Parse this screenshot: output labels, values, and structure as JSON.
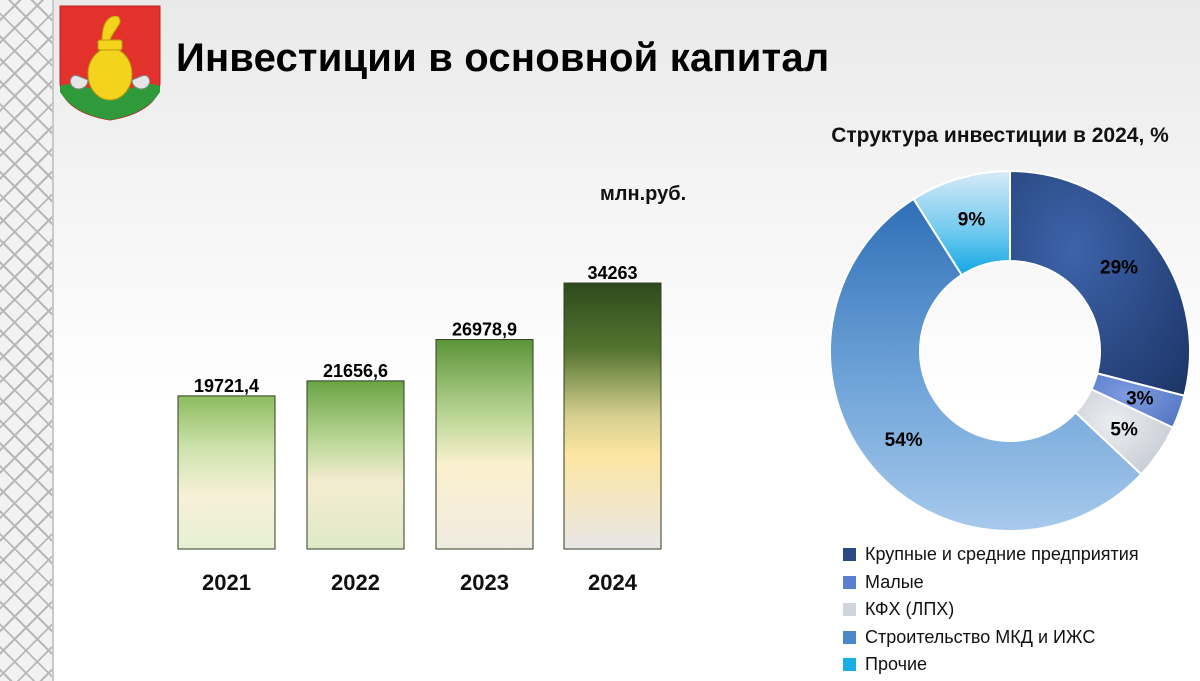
{
  "header": {
    "title": "Инвестиции в основной капитал"
  },
  "bar_block": {
    "units": "млн.руб."
  },
  "pie_block": {
    "title": "Структура инвестиции в 2024, %"
  },
  "chart_data": [
    {
      "type": "bar",
      "categories": [
        "2021",
        "2022",
        "2023",
        "2024"
      ],
      "values": [
        19721.4,
        21656.6,
        26978.9,
        34263
      ],
      "value_labels": [
        "19721,4",
        "21656,6",
        "26978,9",
        "34263"
      ],
      "title": "",
      "ylabel": "млн.руб.",
      "ylim": [
        0,
        34263
      ],
      "grid": false
    },
    {
      "type": "pie",
      "donut": true,
      "title": "Структура инвестиции в 2024, %",
      "labels": [
        "Крупные и средние предприятия",
        "Малые",
        "КФХ (ЛПХ)",
        "Строительство МКД и ИЖС",
        "Прочие"
      ],
      "values": [
        29,
        3,
        5,
        54,
        9
      ],
      "value_labels": [
        "29%",
        "3%",
        "5%",
        "54%",
        "9%"
      ],
      "colors": [
        "#2a4a86",
        "#5b7fce",
        "#d0d4dc",
        "#4a88c9",
        "#19aee6"
      ],
      "legend_position": "bottom"
    }
  ]
}
